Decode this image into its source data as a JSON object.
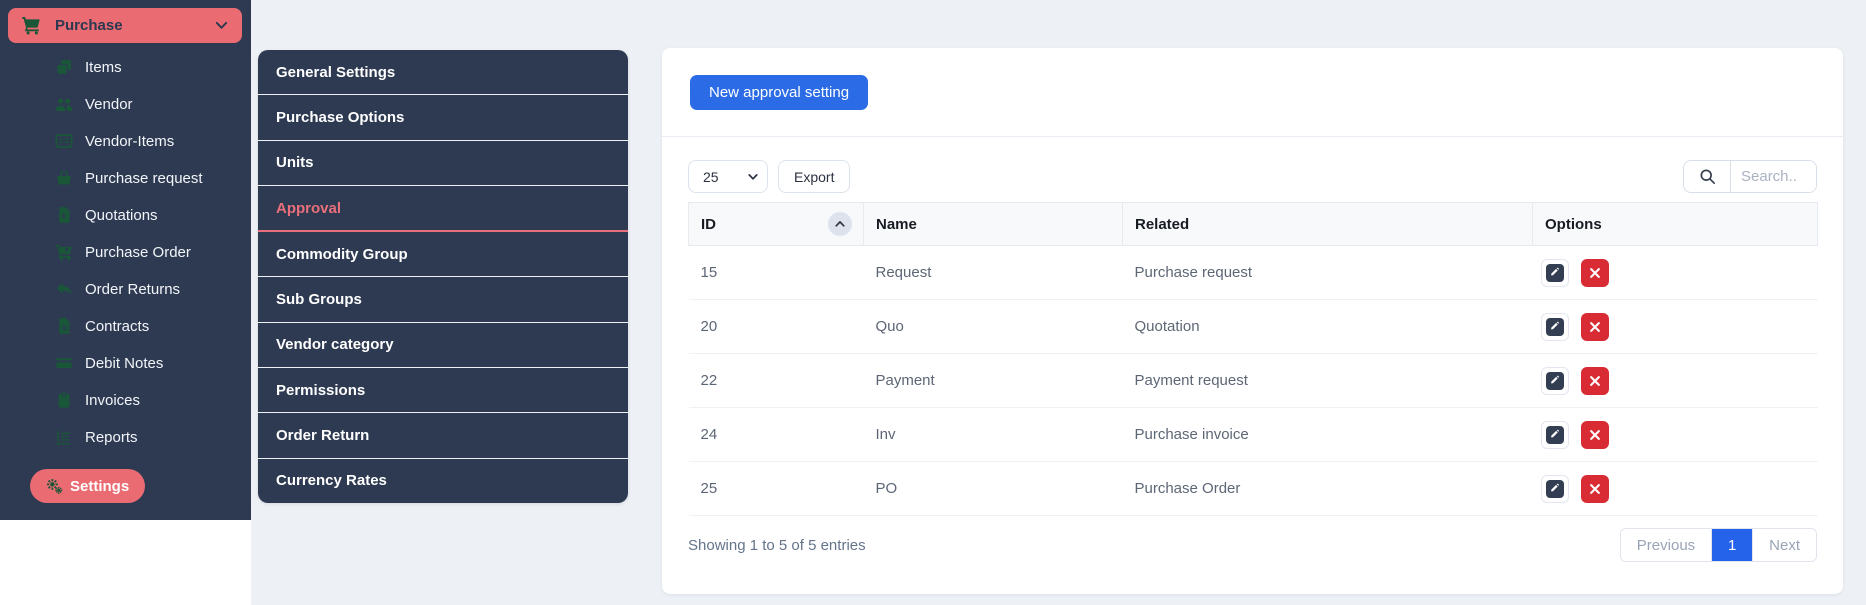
{
  "sidebar": {
    "header": {
      "label": "Purchase",
      "icon": "cart-icon"
    },
    "items": [
      {
        "label": "Items",
        "icon": "items-icon"
      },
      {
        "label": "Vendor",
        "icon": "vendor-icon"
      },
      {
        "label": "Vendor-Items",
        "icon": "vendor-items-icon"
      },
      {
        "label": "Purchase request",
        "icon": "purchase-request-icon"
      },
      {
        "label": "Quotations",
        "icon": "quotations-icon"
      },
      {
        "label": "Purchase Order",
        "icon": "purchase-order-icon"
      },
      {
        "label": "Order Returns",
        "icon": "order-returns-icon"
      },
      {
        "label": "Contracts",
        "icon": "contracts-icon"
      },
      {
        "label": "Debit Notes",
        "icon": "debit-notes-icon"
      },
      {
        "label": "Invoices",
        "icon": "invoices-icon"
      },
      {
        "label": "Reports",
        "icon": "reports-icon"
      }
    ],
    "settings_button": {
      "label": "Settings",
      "icon": "gears-icon"
    }
  },
  "settings_menu": {
    "items": [
      {
        "label": "General Settings",
        "active": false
      },
      {
        "label": "Purchase Options",
        "active": false
      },
      {
        "label": "Units",
        "active": false
      },
      {
        "label": "Approval",
        "active": true
      },
      {
        "label": "Commodity Group",
        "active": false
      },
      {
        "label": "Sub Groups",
        "active": false
      },
      {
        "label": "Vendor category",
        "active": false
      },
      {
        "label": "Permissions",
        "active": false
      },
      {
        "label": "Order Return",
        "active": false
      },
      {
        "label": "Currency Rates",
        "active": false
      }
    ]
  },
  "main": {
    "new_button_label": "New approval setting",
    "page_size_value": "25",
    "export_label": "Export",
    "search_placeholder": "Search..",
    "table": {
      "columns": [
        "ID",
        "Name",
        "Related",
        "Options"
      ],
      "rows": [
        {
          "id": "15",
          "name": "Request",
          "related": "Purchase request"
        },
        {
          "id": "20",
          "name": "Quo",
          "related": "Quotation"
        },
        {
          "id": "22",
          "name": "Payment",
          "related": "Payment request"
        },
        {
          "id": "24",
          "name": "Inv",
          "related": "Purchase invoice"
        },
        {
          "id": "25",
          "name": "PO",
          "related": "Purchase Order"
        }
      ]
    },
    "footer": {
      "showing_text": "Showing 1 to 5 of 5 entries",
      "pagination": {
        "previous_label": "Previous",
        "current_page": "1",
        "next_label": "Next"
      }
    }
  },
  "colors": {
    "sidebar_bg": "#2d3a52",
    "accent_coral": "#eb6b73",
    "icon_green": "#1a5638",
    "primary_blue": "#2b6ce6",
    "pagination_blue": "#2563eb",
    "danger_red": "#d92b33",
    "page_bg": "#edf0f5"
  }
}
